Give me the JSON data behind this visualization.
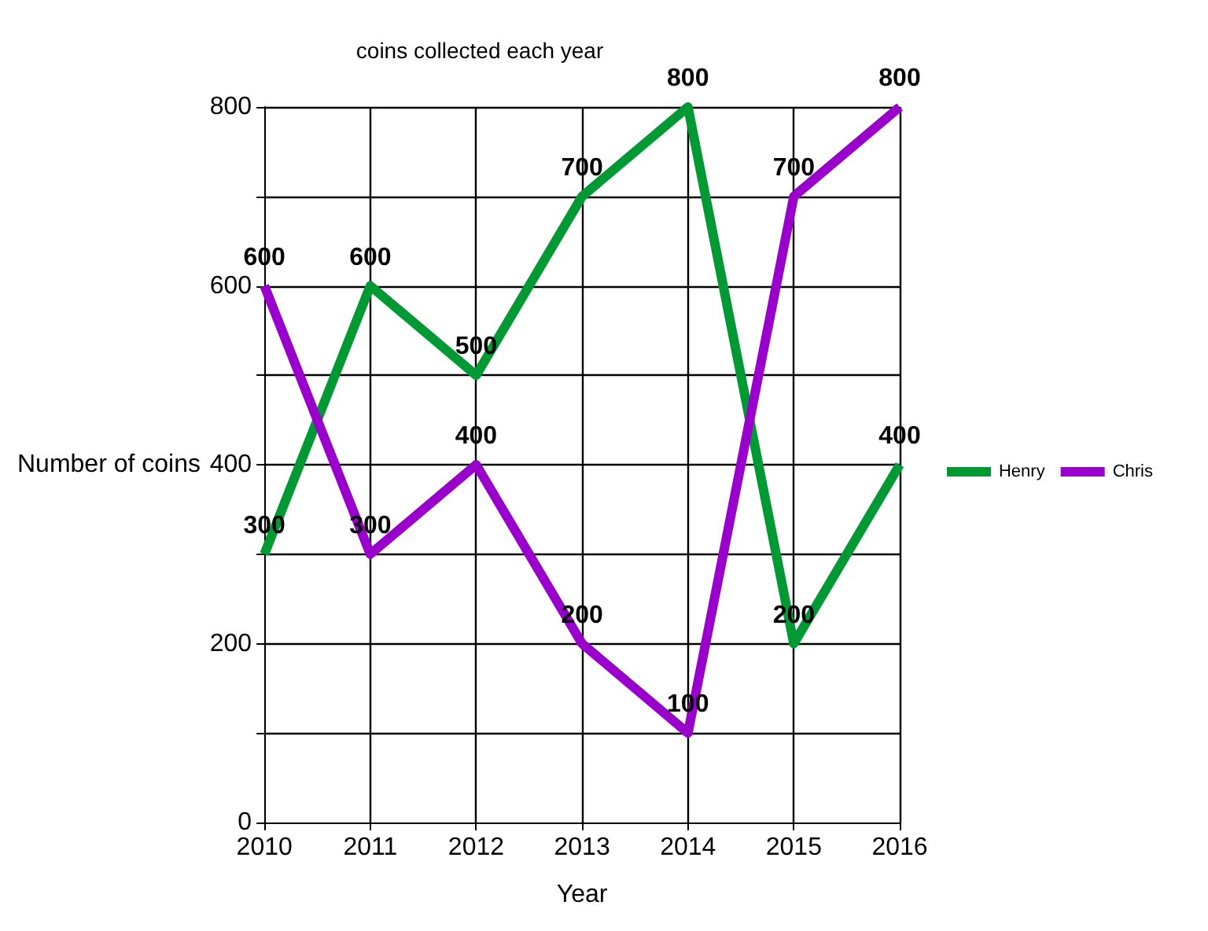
{
  "chart_data": {
    "type": "line",
    "title": "coins collected each year",
    "xlabel": "Year",
    "ylabel": "Number of coins",
    "x": [
      2010,
      2011,
      2012,
      2013,
      2014,
      2015,
      2016
    ],
    "series": [
      {
        "name": "Henry",
        "color": "#009933",
        "values": [
          300,
          600,
          500,
          700,
          800,
          200,
          400
        ]
      },
      {
        "name": "Chris",
        "color": "#9900cc",
        "values": [
          600,
          300,
          400,
          200,
          100,
          700,
          800
        ]
      }
    ],
    "xlim": [
      2010,
      2016
    ],
    "xticks": [
      2010,
      2011,
      2012,
      2013,
      2014,
      2015,
      2016
    ],
    "ylim": [
      0,
      800
    ],
    "yticks": [
      0,
      {
        "value": 100,
        "label": null
      },
      200,
      {
        "value": 300,
        "label": null
      },
      400,
      {
        "value": 500,
        "label": null
      },
      600,
      {
        "value": 700,
        "label": null
      },
      800
    ],
    "grid": true,
    "legend": "right",
    "data_labels": true
  }
}
